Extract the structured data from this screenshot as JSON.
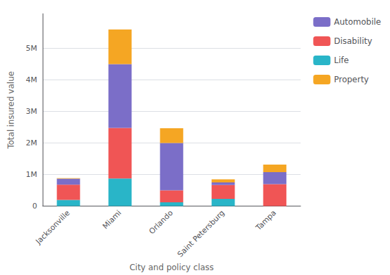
{
  "chart_data": {
    "type": "bar",
    "stacked": true,
    "categories": [
      "Jacksonville",
      "Miami",
      "Orlando",
      "Saint Petersburg",
      "Tampa"
    ],
    "series": [
      {
        "name": "Life",
        "color": "#29b5c8",
        "values": [
          200000,
          880000,
          120000,
          230000,
          0
        ]
      },
      {
        "name": "Disability",
        "color": "#f05555",
        "values": [
          480000,
          1600000,
          380000,
          440000,
          700000
        ]
      },
      {
        "name": "Automobile",
        "color": "#7b6ec8",
        "values": [
          190000,
          2020000,
          1500000,
          80000,
          380000
        ]
      },
      {
        "name": "Property",
        "color": "#f5a623",
        "values": [
          20000,
          1100000,
          470000,
          100000,
          240000
        ]
      }
    ],
    "ylabel": "Total insured value",
    "xlabel": "City and policy class",
    "ylim": [
      0,
      6100000
    ],
    "yticks": [
      0,
      {
        "value": 1000000,
        "label": "1M"
      },
      {
        "value": 2000000,
        "label": "2M"
      },
      {
        "value": 3000000,
        "label": "3M"
      },
      {
        "value": 4000000,
        "label": "4M"
      },
      {
        "value": 5000000,
        "label": "5M"
      }
    ],
    "grid": true,
    "legend": "upper right"
  }
}
